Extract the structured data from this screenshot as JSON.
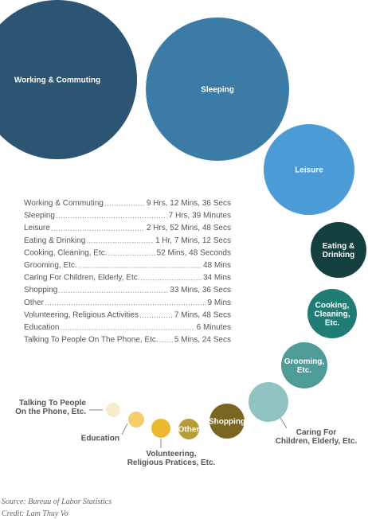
{
  "bubbles": [
    {
      "label": [
        "Working & Commuting"
      ],
      "color": "#2b5573"
    },
    {
      "label": [
        "Sleeping"
      ],
      "color": "#3c7ba6"
    },
    {
      "label": [
        "Leisure"
      ],
      "color": "#4b9bd6"
    },
    {
      "label": [
        "Eating &",
        "Drinking"
      ],
      "color": "#133f3e"
    },
    {
      "label": [
        "Cooking,",
        "Cleaning,",
        "Etc."
      ],
      "color": "#1f7d75"
    },
    {
      "label": [
        "Grooming,",
        "Etc."
      ],
      "color": "#4f9b98"
    },
    {
      "label": [
        "Caring For",
        "Children, Elderly, Etc."
      ],
      "color": "#8fc4c2"
    },
    {
      "label": [
        "Shopping"
      ],
      "color": "#7b6621"
    },
    {
      "label": [
        "Other"
      ],
      "color": "#b69b36"
    },
    {
      "label": [
        "Volunteering,",
        "Religious Pratices, Etc."
      ],
      "color": "#e9ba30"
    },
    {
      "label": [
        "Education"
      ],
      "color": "#f1cf6c"
    },
    {
      "label": [
        "Talking To People",
        "On the Phone, Etc."
      ],
      "color": "#f6ecc8"
    }
  ],
  "list": [
    {
      "name": "Working & Commuting",
      "time": "9 Hrs, 12 Mins, 36 Secs"
    },
    {
      "name": "Sleeping",
      "time": "7 Hrs, 39 Minutes"
    },
    {
      "name": "Leisure",
      "time": "2 Hrs, 52 Mins, 48 Secs"
    },
    {
      "name": "Eating & Drinking",
      "time": "1 Hr, 7 Mins, 12 Secs"
    },
    {
      "name": "Cooking, Cleaning, Etc.",
      "time": "52 Mins, 48 Seconds"
    },
    {
      "name": "Grooming, Etc.",
      "time": "48 Mins"
    },
    {
      "name": "Caring For Children, Elderly, Etc.",
      "time": "34 Mins"
    },
    {
      "name": "Shopping",
      "time": "33 Mins, 36 Secs"
    },
    {
      "name": "Other",
      "time": "9 Mins"
    },
    {
      "name": "Volunteering, Religious Activities",
      "time": "7 Mins, 48 Secs"
    },
    {
      "name": "Education",
      "time": "6 Minutes"
    },
    {
      "name": "Talking To People On The Phone, Etc.",
      "time": "5 Mins, 24 Secs"
    }
  ],
  "footer": {
    "source": "Source: Bureau of Labor Statistics",
    "credit": "Credit: Lam Thuy Vo"
  }
}
